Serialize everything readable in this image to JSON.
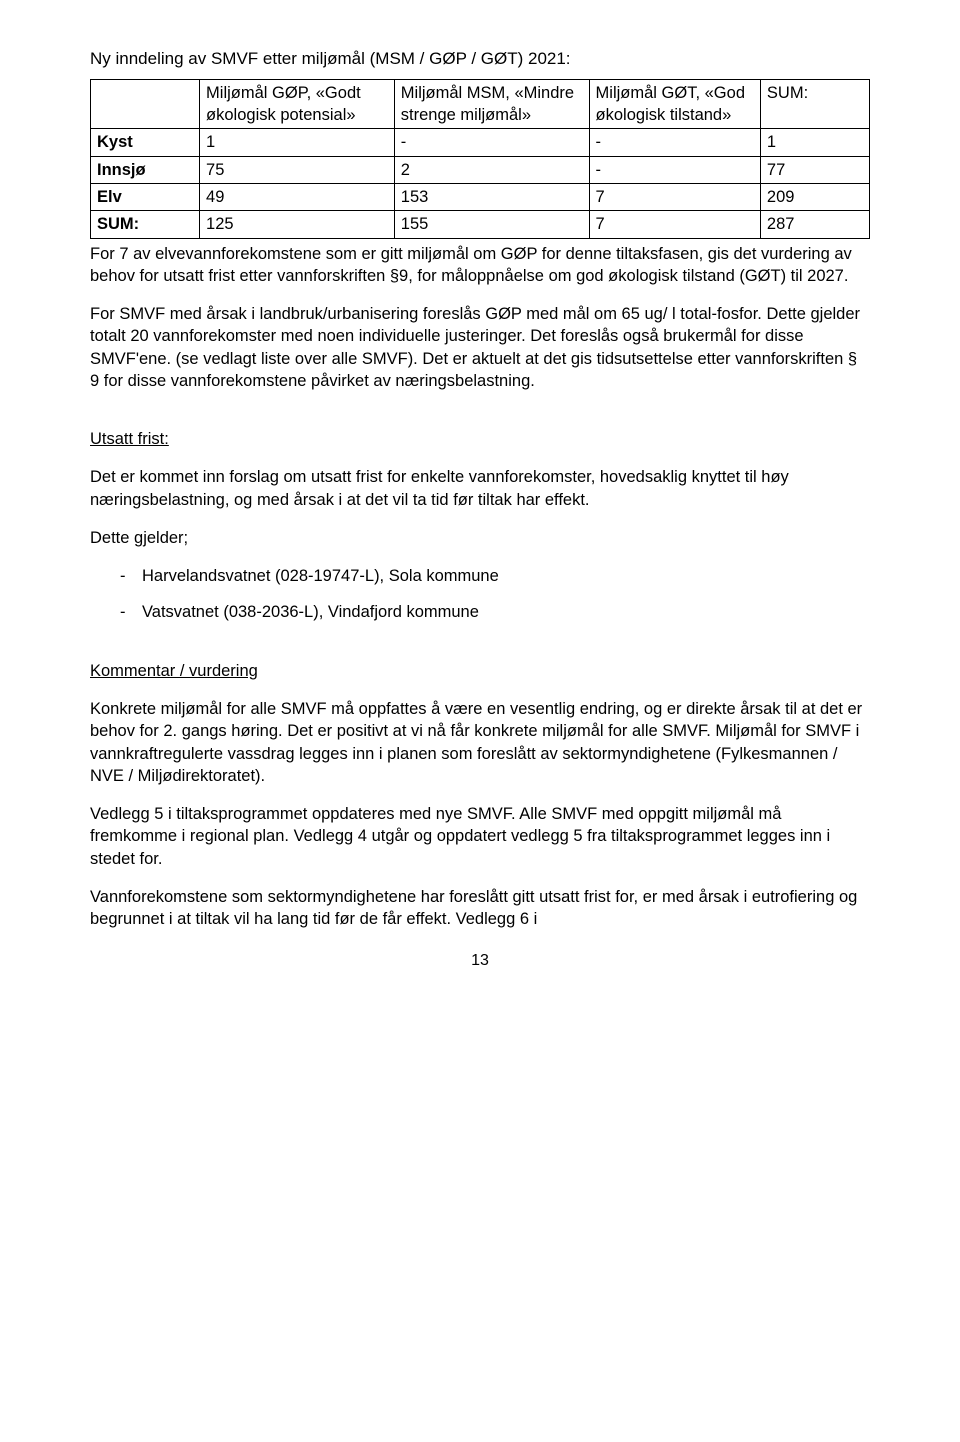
{
  "heading": "Ny inndeling av SMVF etter miljømål (MSM / GØP / GØT) 2021:",
  "table": {
    "headers": [
      "",
      "Miljømål GØP, «Godt økologisk potensial»",
      "Miljømål MSM, «Mindre strenge miljømål»",
      "Miljømål GØT, «God økologisk tilstand»",
      "SUM:"
    ],
    "rows": [
      {
        "label": "Kyst",
        "c1": "1",
        "c2": "-",
        "c3": "-",
        "c4": "1"
      },
      {
        "label": "Innsjø",
        "c1": "75",
        "c2": "2",
        "c3": "-",
        "c4": "77"
      },
      {
        "label": "Elv",
        "c1": "49",
        "c2": "153",
        "c3": "7",
        "c4": "209"
      },
      {
        "label": "SUM:",
        "c1": "125",
        "c2": "155",
        "c3": "7",
        "c4": "287"
      }
    ]
  },
  "p1": "For 7 av elvevannforekomstene som er gitt miljømål om GØP for denne tiltaksfasen, gis det vurdering av behov for utsatt frist etter vannforskriften §9, for måloppnåelse om god økologisk tilstand (GØT) til 2027.",
  "p2": "For SMVF med årsak i landbruk/urbanisering foreslås GØP med mål om 65 ug/ l total-fosfor. Dette gjelder totalt 20 vannforekomster med noen individuelle justeringer. Det foreslås også brukermål for disse SMVF'ene. (se vedlagt liste over alle SMVF). Det er aktuelt at det gis tidsutsettelse etter vannforskriften § 9 for disse vannforekomstene påvirket av næringsbelastning.",
  "utsatt_heading": "Utsatt frist:",
  "p3": "Det er kommet inn forslag om utsatt frist for enkelte vannforekomster, hovedsaklig knyttet til høy næringsbelastning, og med årsak i at det vil ta tid før tiltak har effekt.",
  "p4": "Dette gjelder;",
  "bullets": [
    "Harvelandsvatnet (028-19747-L), Sola kommune",
    "Vatsvatnet (038-2036-L), Vindafjord kommune"
  ],
  "kommentar_heading": "Kommentar / vurdering",
  "p5": "Konkrete miljømål for alle SMVF må oppfattes å være en vesentlig endring, og er direkte årsak til at det er behov for 2. gangs høring. Det er positivt at vi nå får konkrete miljømål for alle SMVF. Miljømål for SMVF i vannkraftregulerte vassdrag legges inn i planen som foreslått av sektormyndighetene (Fylkesmannen / NVE / Miljødirektoratet).",
  "p6": "Vedlegg 5 i tiltaksprogrammet oppdateres med nye SMVF.  Alle SMVF med oppgitt miljømål må fremkomme i regional plan. Vedlegg 4 utgår og oppdatert vedlegg 5 fra tiltaksprogrammet legges inn i stedet for.",
  "p7": "Vannforekomstene som sektormyndighetene har foreslått gitt utsatt frist for, er med årsak i eutrofiering og begrunnet i at tiltak vil ha lang tid før de får effekt. Vedlegg 6 i",
  "pagenum": "13"
}
